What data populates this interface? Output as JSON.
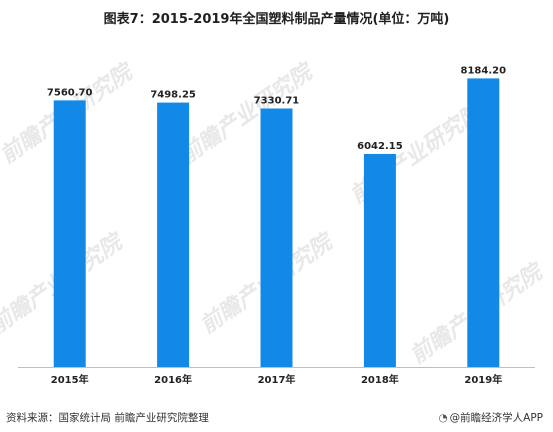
{
  "chart_data": {
    "type": "bar",
    "title": "图表7：2015-2019年全国塑料制品产量情况(单位：万吨)",
    "categories": [
      "2015年",
      "2016年",
      "2017年",
      "2018年",
      "2019年"
    ],
    "values": [
      7560.7,
      7498.25,
      7330.71,
      6042.15,
      8184.2
    ],
    "value_labels": [
      "7560.70",
      "7498.25",
      "7330.71",
      "6042.15",
      "8184.20"
    ],
    "ylim": [
      0,
      9500
    ],
    "grid": false,
    "legend": "none",
    "colors": {
      "bar": "#1389e7",
      "axis": "#bfbfbf"
    }
  },
  "footer": {
    "source": "资料来源：国家统计局 前瞻产业研究院整理",
    "brand": "@前瞻经济学人APP"
  },
  "watermark": {
    "text": "前瞻产业研究院"
  }
}
